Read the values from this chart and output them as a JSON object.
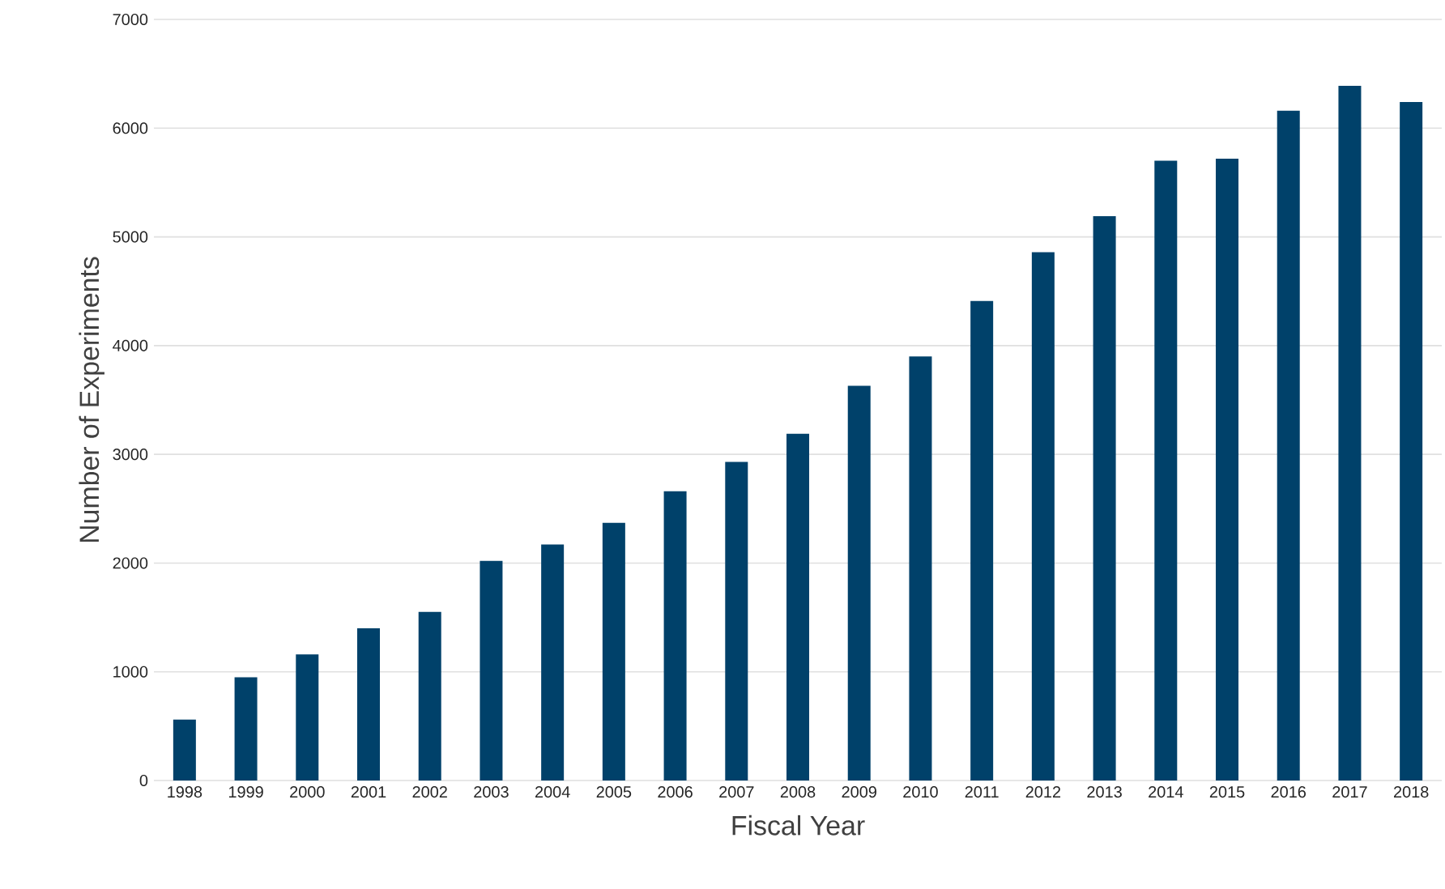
{
  "chart_data": {
    "type": "bar",
    "xlabel": "Fiscal Year",
    "ylabel": "Number of Experiments",
    "categories": [
      "1998",
      "1999",
      "2000",
      "2001",
      "2002",
      "2003",
      "2004",
      "2005",
      "2006",
      "2007",
      "2008",
      "2009",
      "2010",
      "2011",
      "2012",
      "2013",
      "2014",
      "2015",
      "2016",
      "2017",
      "2018"
    ],
    "values": [
      560,
      950,
      1160,
      1400,
      1550,
      2020,
      2170,
      2370,
      2660,
      2930,
      3190,
      3630,
      3900,
      4410,
      4860,
      5190,
      5700,
      5720,
      6160,
      6390,
      6240
    ],
    "color": "#00416a",
    "ylim": [
      0,
      7000
    ],
    "yticks": [
      0,
      1000,
      2000,
      3000,
      4000,
      5000,
      6000,
      7000
    ],
    "grid": "y"
  }
}
